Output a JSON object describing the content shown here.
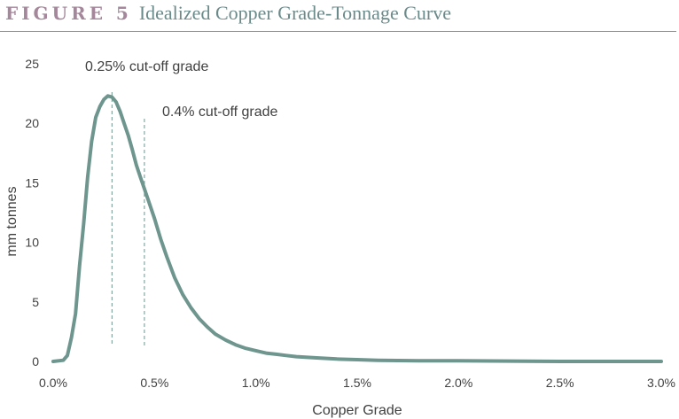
{
  "figure": {
    "label": "FIGURE 5",
    "title": "Idealized Copper Grade-Tonnage Curve"
  },
  "colors": {
    "label": "#a4879a",
    "title": "#6b8a8a",
    "rule": "#7d9a96",
    "curve": "#6e968e",
    "cutoff_line": "#6e968e",
    "text": "#404040"
  },
  "chart_data": {
    "type": "line",
    "title": "Idealized Copper Grade-Tonnage Curve",
    "xlabel": "Copper Grade",
    "ylabel": "mm tonnes",
    "xlim": [
      0,
      3.0
    ],
    "ylim": [
      0,
      25
    ],
    "x_ticks": [
      0,
      0.5,
      1.0,
      1.5,
      2.0,
      2.5,
      3.0
    ],
    "x_tick_labels": [
      "0.0%",
      "0.5%",
      "1.0%",
      "1.5%",
      "2.0%",
      "2.5%",
      "3.0%"
    ],
    "y_ticks": [
      0,
      5,
      10,
      15,
      20,
      25
    ],
    "y_tick_labels": [
      "0",
      "5",
      "10",
      "15",
      "20",
      "25"
    ],
    "grid": false,
    "legend": "none",
    "series": [
      {
        "x": [
          0.0,
          0.05,
          0.07,
          0.09,
          0.11,
          0.13,
          0.15,
          0.17,
          0.19,
          0.21,
          0.23,
          0.25,
          0.27,
          0.29,
          0.31,
          0.33,
          0.35,
          0.37,
          0.39,
          0.41,
          0.43,
          0.45,
          0.47,
          0.5,
          0.53,
          0.56,
          0.6,
          0.64,
          0.68,
          0.72,
          0.76,
          0.8,
          0.85,
          0.9,
          0.95,
          1.0,
          1.05,
          1.1,
          1.15,
          1.2,
          1.3,
          1.4,
          1.5,
          1.6,
          1.8,
          2.0,
          2.5,
          3.0
        ],
        "y": [
          0.0,
          0.1,
          0.5,
          2.0,
          4.0,
          8.0,
          11.5,
          15.5,
          18.5,
          20.5,
          21.4,
          22.0,
          22.3,
          22.2,
          21.8,
          21.0,
          20.0,
          19.0,
          17.8,
          16.5,
          15.5,
          14.5,
          13.5,
          12.0,
          10.3,
          8.8,
          7.0,
          5.6,
          4.5,
          3.6,
          2.9,
          2.3,
          1.8,
          1.4,
          1.1,
          0.9,
          0.7,
          0.6,
          0.5,
          0.4,
          0.3,
          0.2,
          0.15,
          0.1,
          0.05,
          0.05,
          0.0,
          0.0
        ]
      }
    ],
    "annotations": [
      {
        "label": "0.25% cut-off grade",
        "x": 0.29
      },
      {
        "label": "0.4% cut-off grade",
        "x": 0.45
      }
    ]
  }
}
